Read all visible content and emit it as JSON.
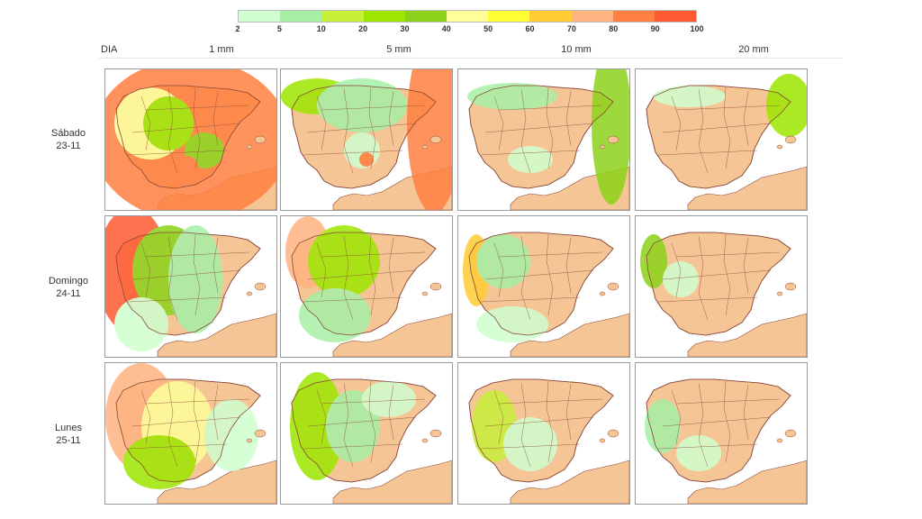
{
  "legend": {
    "colors": [
      "#cfffcf",
      "#a6f0a6",
      "#c8f03a",
      "#9ee600",
      "#8cd21a",
      "#ffff99",
      "#ffff33",
      "#ffcc33",
      "#ffb380",
      "#ff8040",
      "#ff5a32"
    ],
    "ticks": [
      "2",
      "5",
      "10",
      "20",
      "30",
      "40",
      "50",
      "60",
      "70",
      "80",
      "90",
      "100"
    ]
  },
  "header": {
    "dia_label": "DIA",
    "columns": [
      "1 mm",
      "5 mm",
      "10 mm",
      "20 mm"
    ]
  },
  "rows": [
    {
      "day": "Sábado",
      "date": "23-11"
    },
    {
      "day": "Domingo",
      "date": "24-11"
    },
    {
      "day": "Lunes",
      "date": "25-11"
    }
  ],
  "map_colors": {
    "land": "#f5c596",
    "sea": "#ffffff",
    "border": "#8a4a3a"
  }
}
